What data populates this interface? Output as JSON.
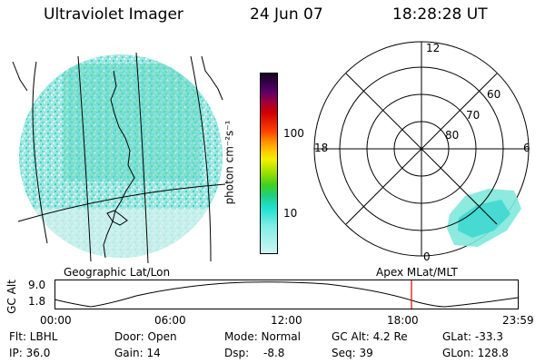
{
  "header": {
    "instrument": "Ultraviolet Imager",
    "date": "24 Jun 07",
    "time": "18:28:28 UT"
  },
  "colorbar": {
    "unit_label": "photon cm⁻²s⁻¹",
    "ticks": [
      "100",
      "10"
    ]
  },
  "polar_plot": {
    "mlt_labels": [
      "12",
      "18",
      "6",
      "0"
    ],
    "lat_labels": [
      "60",
      "70",
      "80"
    ]
  },
  "orbit_plot": {
    "left_title": "Geographic Lat/Lon",
    "right_title": "Apex MLat/MLT",
    "y_axis_label": "GC Alt",
    "y_ticks": [
      "9.0",
      "1.8"
    ],
    "x_ticks": [
      "00:00",
      "06:00",
      "12:00",
      "18:00",
      "23:59"
    ]
  },
  "info": {
    "row1": [
      "Flt: LBHL",
      "Door: Open",
      "Mode: Normal",
      "GC Alt: 4.2 Re",
      "GLat: -33.3"
    ],
    "row2": [
      "IP: 36.0",
      "Gain: 14",
      "Dsp:",
      "-8.8",
      "Seq: 39",
      "GLon: 128.8"
    ]
  },
  "colors": {
    "marker": "#e00000",
    "aurora": "#40e0d0",
    "ground": "#b8ecea"
  }
}
